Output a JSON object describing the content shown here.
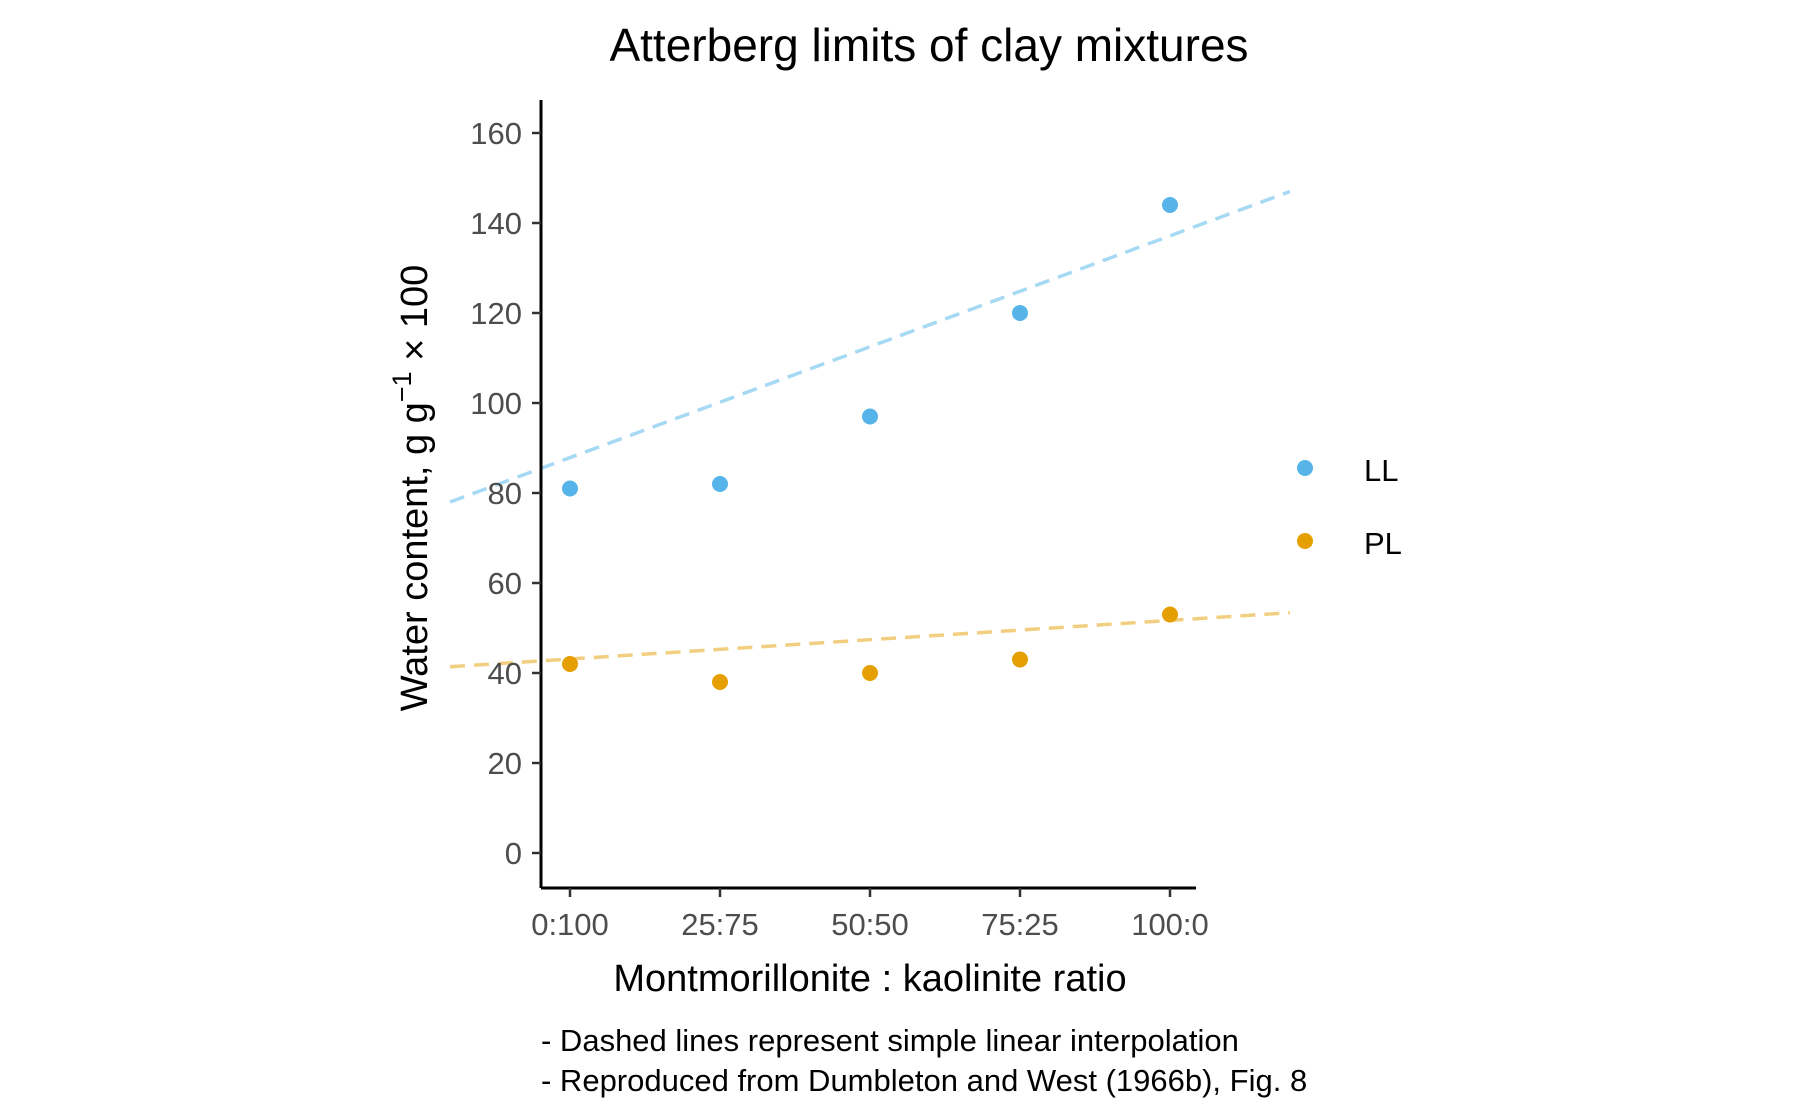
{
  "chart_data": {
    "type": "scatter",
    "title": "Atterberg limits of clay mixtures",
    "xlabel": "Montmorillonite : kaolinite ratio",
    "ylabel_prefix": "Water content, g g",
    "ylabel_superscript": "−1",
    "ylabel_suffix": " × 100",
    "categories": [
      "0:100",
      "25:75",
      "50:50",
      "75:25",
      "100:0"
    ],
    "ylim": [
      -7,
      168
    ],
    "yticks": [
      0,
      20,
      40,
      60,
      80,
      100,
      120,
      140,
      160
    ],
    "grid": false,
    "legend_position": "right",
    "series": [
      {
        "name": "LL",
        "color": "#56B4E9",
        "line_color": "#A6D9F3",
        "values": [
          81,
          82,
          97,
          120,
          144
        ],
        "fit_line": {
          "style": "dashed",
          "from": [
            -0.2,
            78
          ],
          "to": [
            1.2,
            147
          ]
        }
      },
      {
        "name": "PL",
        "color": "#E69F00",
        "line_color": "#F2CF80",
        "values": [
          42,
          38,
          40,
          43,
          53
        ],
        "fit_line": {
          "style": "dashed",
          "from": [
            -0.2,
            41.4
          ],
          "to": [
            1.2,
            53.4
          ]
        }
      }
    ],
    "annotations": [
      "- Dashed lines represent simple linear interpolation",
      "- Reproduced from Dumbleton and West (1966b), Fig. 8"
    ]
  }
}
